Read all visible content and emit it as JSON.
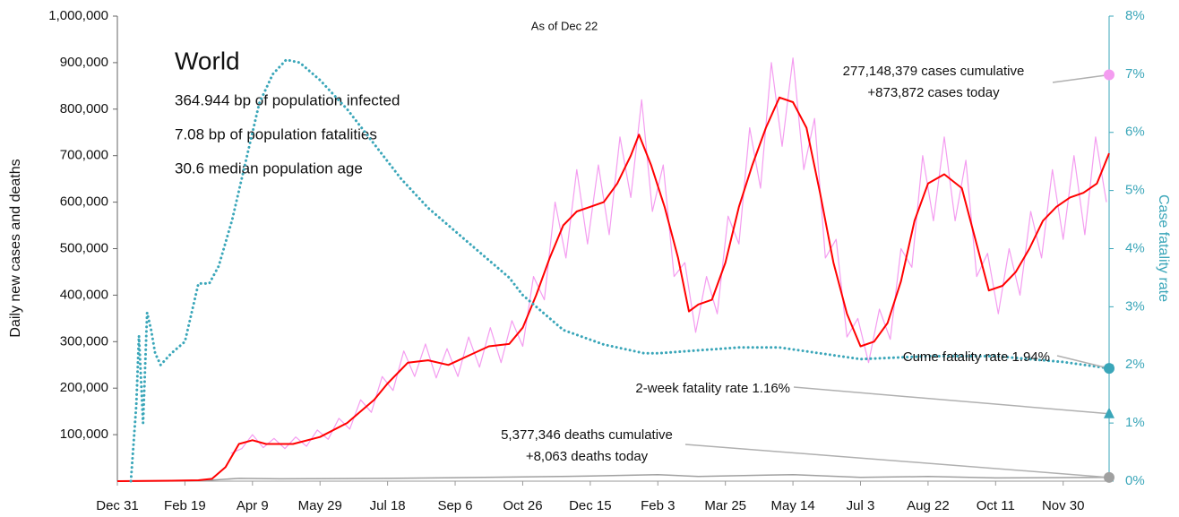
{
  "chart_data": {
    "type": "line",
    "title": "World",
    "subtitle": "As of Dec 22",
    "stats": [
      "364.944 bp of population infected",
      "7.08 bp of population fatalities",
      "30.6 median population age"
    ],
    "ylabel": "Daily new cases and deaths",
    "y2label": "Case fatality rate",
    "xlim": [
      0,
      734
    ],
    "xticks": [
      {
        "value": 0,
        "label": "Dec 31"
      },
      {
        "value": 50,
        "label": "Feb 19"
      },
      {
        "value": 100,
        "label": "Apr 9"
      },
      {
        "value": 150,
        "label": "May 29"
      },
      {
        "value": 200,
        "label": "Jul 18"
      },
      {
        "value": 250,
        "label": "Sep 6"
      },
      {
        "value": 300,
        "label": "Oct 26"
      },
      {
        "value": 350,
        "label": "Dec 15"
      },
      {
        "value": 400,
        "label": "Feb 3"
      },
      {
        "value": 450,
        "label": "Mar 25"
      },
      {
        "value": 500,
        "label": "May 14"
      },
      {
        "value": 550,
        "label": "Jul 3"
      },
      {
        "value": 600,
        "label": "Aug 22"
      },
      {
        "value": 650,
        "label": "Oct 11"
      },
      {
        "value": 700,
        "label": "Nov 30"
      }
    ],
    "ylim": [
      0,
      1000000
    ],
    "yticks": [
      {
        "value": 100000,
        "label": "100,000"
      },
      {
        "value": 200000,
        "label": "200,000"
      },
      {
        "value": 300000,
        "label": "300,000"
      },
      {
        "value": 400000,
        "label": "400,000"
      },
      {
        "value": 500000,
        "label": "500,000"
      },
      {
        "value": 600000,
        "label": "600,000"
      },
      {
        "value": 700000,
        "label": "700,000"
      },
      {
        "value": 800000,
        "label": "800,000"
      },
      {
        "value": 900000,
        "label": "900,000"
      },
      {
        "value": 1000000,
        "label": "1,000,000"
      }
    ],
    "y2lim": [
      0,
      8
    ],
    "y2ticks": [
      {
        "value": 0,
        "label": "0%"
      },
      {
        "value": 1,
        "label": "1%"
      },
      {
        "value": 2,
        "label": "2%"
      },
      {
        "value": 3,
        "label": "3%"
      },
      {
        "value": 4,
        "label": "4%"
      },
      {
        "value": 5,
        "label": "5%"
      },
      {
        "value": 6,
        "label": "6%"
      },
      {
        "value": 7,
        "label": "7%"
      },
      {
        "value": 8,
        "label": "8%"
      }
    ],
    "series": [
      {
        "color": "#f49cf0",
        "width": 1.2,
        "style": "solid",
        "x": [
          84,
          92,
          100,
          108,
          116,
          124,
          132,
          140,
          148,
          156,
          164,
          172,
          180,
          188,
          196,
          204,
          212,
          220,
          228,
          236,
          244,
          252,
          260,
          268,
          276,
          284,
          292,
          300,
          308,
          316,
          324,
          332,
          340,
          348,
          356,
          364,
          372,
          380,
          388,
          396,
          404,
          412,
          420,
          428,
          436,
          444,
          452,
          460,
          468,
          476,
          484,
          492,
          500,
          508,
          516,
          524,
          532,
          540,
          548,
          556,
          564,
          572,
          580,
          588,
          596,
          604,
          612,
          620,
          628,
          636,
          644,
          652,
          660,
          668,
          676,
          684,
          692,
          700,
          708,
          716,
          724,
          732
        ],
        "values": [
          60000,
          70000,
          100000,
          72000,
          92000,
          70000,
          95000,
          75000,
          110000,
          90000,
          135000,
          112000,
          175000,
          148000,
          225000,
          195000,
          280000,
          225000,
          295000,
          222000,
          285000,
          225000,
          310000,
          245000,
          330000,
          255000,
          345000,
          290000,
          440000,
          390000,
          600000,
          480000,
          670000,
          510000,
          680000,
          530000,
          740000,
          610000,
          820000,
          580000,
          680000,
          440000,
          470000,
          320000,
          440000,
          360000,
          570000,
          510000,
          760000,
          630000,
          900000,
          720000,
          910000,
          670000,
          780000,
          480000,
          520000,
          310000,
          350000,
          255000,
          370000,
          305000,
          500000,
          460000,
          700000,
          560000,
          740000,
          560000,
          690000,
          440000,
          490000,
          360000,
          500000,
          400000,
          580000,
          480000,
          670000,
          520000,
          700000,
          530000,
          740000,
          600000
        ]
      },
      {
        "color": "#a0a0a0",
        "width": 1.5,
        "style": "solid",
        "x": [
          0,
          60,
          90,
          120,
          200,
          300,
          350,
          400,
          430,
          480,
          500,
          550,
          600,
          650,
          734
        ],
        "values": [
          0,
          500,
          6000,
          5000,
          6000,
          9000,
          11000,
          14000,
          10000,
          13000,
          14000,
          8000,
          10000,
          7000,
          8000
        ]
      },
      {
        "color": "#ff0000",
        "width": 2,
        "style": "solid",
        "x": [
          0,
          40,
          60,
          70,
          80,
          90,
          100,
          110,
          130,
          150,
          170,
          190,
          200,
          215,
          230,
          245,
          260,
          275,
          290,
          300,
          310,
          320,
          330,
          340,
          350,
          360,
          370,
          380,
          386,
          395,
          405,
          415,
          423,
          430,
          440,
          450,
          460,
          470,
          480,
          490,
          500,
          510,
          520,
          530,
          540,
          550,
          560,
          570,
          580,
          590,
          600,
          612,
          625,
          635,
          645,
          655,
          665,
          675,
          685,
          695,
          705,
          715,
          725,
          734
        ],
        "values": [
          0,
          1000,
          2000,
          5000,
          30000,
          80000,
          88000,
          80000,
          80000,
          95000,
          125000,
          175000,
          210000,
          255000,
          260000,
          250000,
          270000,
          290000,
          295000,
          330000,
          400000,
          480000,
          550000,
          580000,
          590000,
          600000,
          640000,
          700000,
          745000,
          680000,
          590000,
          480000,
          365000,
          380000,
          390000,
          470000,
          590000,
          680000,
          760000,
          825000,
          815000,
          760000,
          620000,
          470000,
          360000,
          290000,
          300000,
          340000,
          430000,
          560000,
          640000,
          660000,
          630000,
          520000,
          410000,
          420000,
          450000,
          500000,
          560000,
          590000,
          610000,
          620000,
          640000,
          705000
        ]
      },
      {
        "color": "#3aa6b9",
        "width": 3,
        "style": "dotted",
        "axis": "y2",
        "x": [
          10,
          14,
          16,
          19,
          22,
          25,
          28,
          32,
          40,
          50,
          60,
          68,
          75,
          85,
          95,
          105,
          115,
          125,
          135,
          150,
          170,
          190,
          210,
          230,
          250,
          270,
          290,
          300,
          330,
          360,
          390,
          400,
          430,
          460,
          490,
          520,
          550,
          600,
          650,
          700,
          734
        ],
        "values": [
          0,
          1.3,
          2.5,
          1.0,
          2.9,
          2.6,
          2.2,
          2.0,
          2.2,
          2.4,
          3.4,
          3.4,
          3.7,
          4.5,
          5.5,
          6.5,
          7.0,
          7.25,
          7.2,
          6.9,
          6.4,
          5.8,
          5.2,
          4.7,
          4.3,
          3.9,
          3.5,
          3.2,
          2.6,
          2.35,
          2.2,
          2.2,
          2.25,
          2.3,
          2.3,
          2.2,
          2.1,
          2.15,
          2.15,
          2.05,
          1.94
        ]
      }
    ],
    "end_markers": [
      {
        "value": 873872,
        "color": "#f49cf0",
        "shape": "circle",
        "text": [
          "277,148,379 cases cumulative",
          "+873,872 cases today"
        ]
      },
      {
        "value": 1.94,
        "axis": "y2",
        "color": "#3aa6b9",
        "shape": "circle",
        "text": [
          "Cume fatality rate 1.94%"
        ]
      },
      {
        "value": 1.16,
        "axis": "y2",
        "color": "#3aa6b9",
        "shape": "triangle",
        "text": [
          "2-week fatality rate 1.16%"
        ]
      },
      {
        "value": 8063,
        "color": "#a0a0a0",
        "shape": "circle",
        "text": [
          "5,377,346 deaths cumulative",
          "+8,063 deaths today"
        ]
      }
    ]
  }
}
